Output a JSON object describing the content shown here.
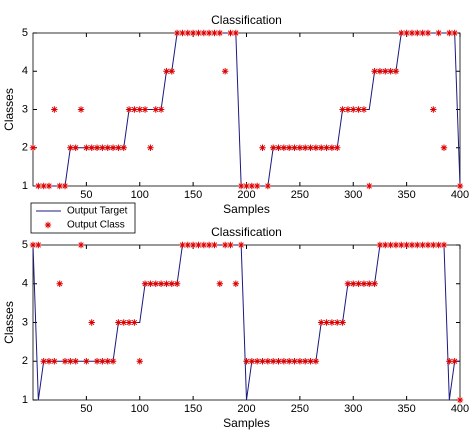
{
  "chart_data": [
    {
      "type": "line-scatter",
      "title": "Classification",
      "x_label": "Samples",
      "y_label": "Classes",
      "x": [
        0,
        5,
        10,
        15,
        20,
        25,
        30,
        35,
        40,
        45,
        50,
        55,
        60,
        65,
        70,
        75,
        80,
        85,
        90,
        95,
        100,
        105,
        110,
        115,
        120,
        125,
        130,
        135,
        140,
        145,
        150,
        155,
        160,
        165,
        170,
        175,
        180,
        185,
        190,
        195,
        200,
        205,
        210,
        215,
        220,
        225,
        230,
        235,
        240,
        245,
        250,
        255,
        260,
        265,
        270,
        275,
        280,
        285,
        290,
        295,
        300,
        305,
        310,
        315,
        320,
        325,
        330,
        335,
        340,
        345,
        350,
        355,
        360,
        365,
        370,
        375,
        380,
        385,
        390,
        395,
        400
      ],
      "series": [
        {
          "name": "Output Target",
          "color": "#1a1a80",
          "style": "line",
          "values": [
            1,
            1,
            1,
            1,
            1,
            1,
            1,
            2,
            2,
            2,
            2,
            2,
            2,
            2,
            2,
            2,
            2,
            2,
            3,
            3,
            3,
            3,
            3,
            3,
            3,
            4,
            4,
            5,
            5,
            5,
            5,
            5,
            5,
            5,
            5,
            5,
            5,
            5,
            5,
            1,
            1,
            1,
            1,
            1,
            1,
            2,
            2,
            2,
            2,
            2,
            2,
            2,
            2,
            2,
            2,
            2,
            2,
            2,
            3,
            3,
            3,
            3,
            3,
            3,
            4,
            4,
            4,
            4,
            4,
            5,
            5,
            5,
            5,
            5,
            5,
            5,
            5,
            5,
            5,
            5,
            1
          ]
        },
        {
          "name": "Output Class",
          "color": "#dd0000",
          "style": "marker",
          "values": [
            2,
            1,
            1,
            1,
            3,
            1,
            1,
            2,
            2,
            3,
            2,
            2,
            2,
            2,
            2,
            2,
            2,
            2,
            3,
            3,
            3,
            3,
            2,
            3,
            3,
            4,
            4,
            5,
            5,
            5,
            5,
            5,
            5,
            5,
            5,
            5,
            4,
            5,
            5,
            1,
            1,
            1,
            1,
            2,
            1,
            2,
            2,
            2,
            2,
            2,
            2,
            2,
            2,
            2,
            2,
            2,
            2,
            2,
            3,
            3,
            3,
            3,
            3,
            1,
            4,
            4,
            4,
            4,
            4,
            5,
            5,
            5,
            5,
            5,
            5,
            3,
            5,
            2,
            5,
            5,
            1
          ]
        }
      ],
      "xlim": [
        0,
        400
      ],
      "xticks": [
        50,
        100,
        150,
        200,
        250,
        300,
        350,
        400
      ],
      "ylim": [
        1,
        5
      ],
      "yticks": [
        1,
        2,
        3,
        4,
        5
      ],
      "legend": "lower left"
    },
    {
      "type": "line-scatter",
      "title": "Classification",
      "x_label": "Samples",
      "y_label": "Classes",
      "x": [
        0,
        5,
        10,
        15,
        20,
        25,
        30,
        35,
        40,
        45,
        50,
        55,
        60,
        65,
        70,
        75,
        80,
        85,
        90,
        95,
        100,
        105,
        110,
        115,
        120,
        125,
        130,
        135,
        140,
        145,
        150,
        155,
        160,
        165,
        170,
        175,
        180,
        185,
        190,
        195,
        200,
        205,
        210,
        215,
        220,
        225,
        230,
        235,
        240,
        245,
        250,
        255,
        260,
        265,
        270,
        275,
        280,
        285,
        290,
        295,
        300,
        305,
        310,
        315,
        320,
        325,
        330,
        335,
        340,
        345,
        350,
        355,
        360,
        365,
        370,
        375,
        380,
        385,
        390,
        395,
        400
      ],
      "series": [
        {
          "name": "Output Target",
          "color": "#1a1a80",
          "style": "line",
          "values": [
            5,
            1,
            2,
            2,
            2,
            2,
            2,
            2,
            2,
            2,
            2,
            2,
            2,
            2,
            2,
            2,
            3,
            3,
            3,
            3,
            3,
            4,
            4,
            4,
            4,
            4,
            4,
            4,
            5,
            5,
            5,
            5,
            5,
            5,
            5,
            5,
            5,
            5,
            5,
            5,
            1,
            2,
            2,
            2,
            2,
            2,
            2,
            2,
            2,
            2,
            2,
            2,
            2,
            2,
            3,
            3,
            3,
            3,
            3,
            4,
            4,
            4,
            4,
            4,
            4,
            5,
            5,
            5,
            5,
            5,
            5,
            5,
            5,
            5,
            5,
            5,
            5,
            5,
            1,
            2,
            2
          ]
        },
        {
          "name": "Output Class",
          "color": "#dd0000",
          "style": "marker",
          "values": [
            5,
            5,
            2,
            2,
            2,
            4,
            2,
            2,
            2,
            5,
            2,
            3,
            2,
            2,
            2,
            2,
            3,
            3,
            3,
            3,
            2,
            4,
            4,
            4,
            4,
            4,
            4,
            4,
            5,
            5,
            5,
            5,
            5,
            5,
            5,
            4,
            5,
            5,
            4,
            5,
            2,
            2,
            2,
            2,
            2,
            2,
            2,
            2,
            2,
            2,
            2,
            2,
            2,
            2,
            3,
            3,
            3,
            3,
            3,
            4,
            4,
            4,
            4,
            4,
            4,
            5,
            5,
            5,
            5,
            5,
            5,
            5,
            5,
            5,
            5,
            5,
            5,
            5,
            2,
            2,
            1
          ]
        }
      ],
      "xlim": [
        0,
        400
      ],
      "xticks": [
        50,
        100,
        150,
        200,
        250,
        300,
        350,
        400
      ],
      "ylim": [
        1,
        5
      ],
      "yticks": [
        1,
        2,
        3,
        4,
        5
      ]
    }
  ]
}
